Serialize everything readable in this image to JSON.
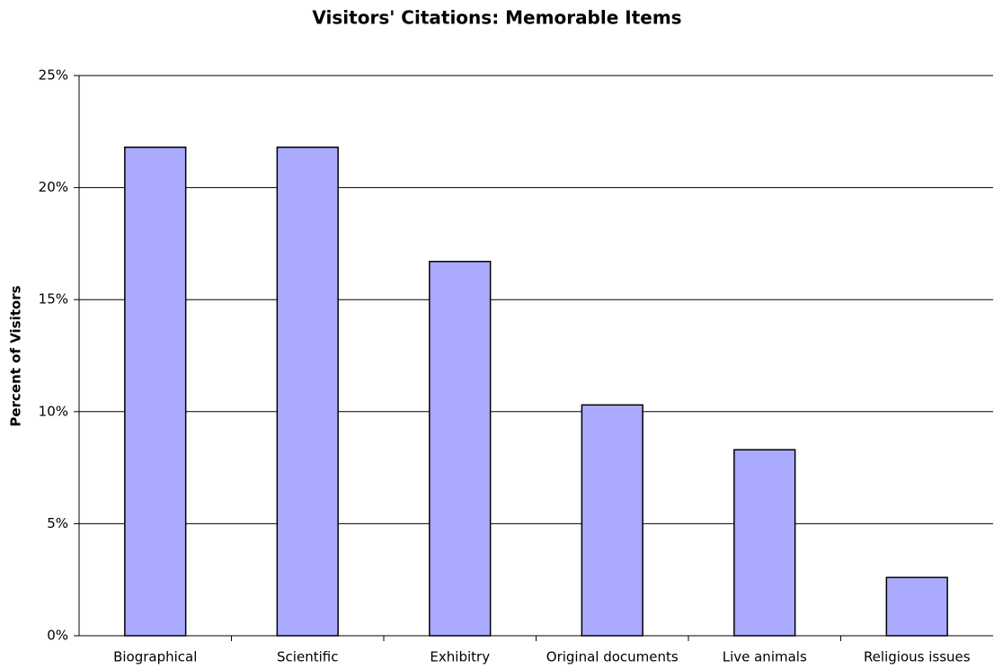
{
  "chart_data": {
    "type": "bar",
    "title": "Visitors' Citations: Memorable Items",
    "y_label": "Percent of Visitors",
    "categories": [
      "Biographical",
      "Scientific",
      "Exhibitry",
      "Original documents",
      "Live animals",
      "Religious issues"
    ],
    "values": [
      21.8,
      21.8,
      16.7,
      10.3,
      8.3,
      2.6
    ],
    "color": "#aaaaff",
    "ylim": [
      0,
      25
    ],
    "yticks": [
      {
        "value": 0,
        "label": "0%"
      },
      {
        "value": 5,
        "label": "5%"
      },
      {
        "value": 10,
        "label": "10%"
      },
      {
        "value": 15,
        "label": "15%"
      },
      {
        "value": 20,
        "label": "20%"
      },
      {
        "value": 25,
        "label": "25%"
      }
    ],
    "grid": true
  }
}
